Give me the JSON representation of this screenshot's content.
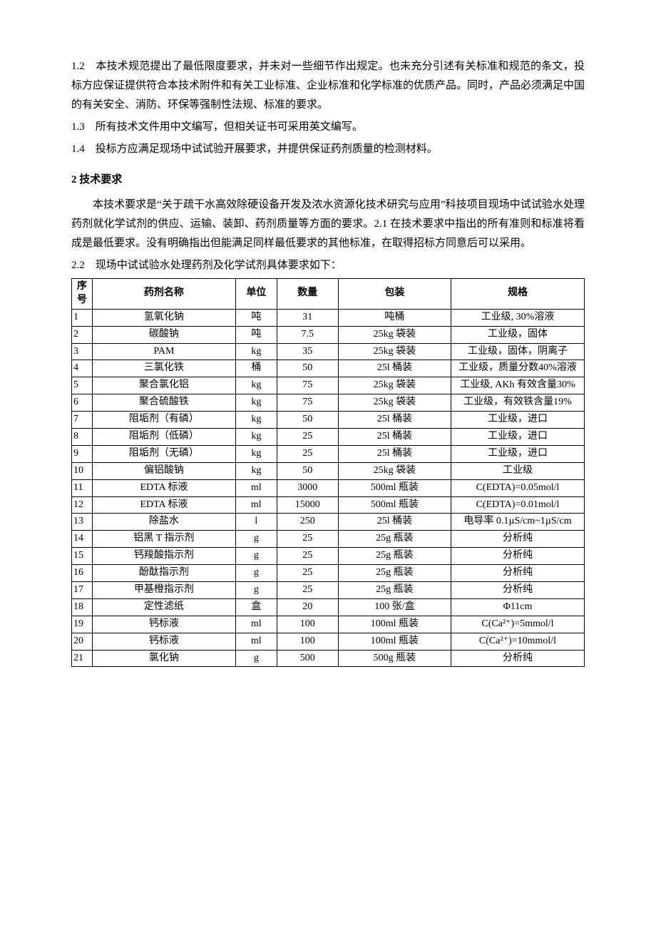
{
  "paragraphs": {
    "p12": "1.2　本技术规范提出了最低限度要求，并未对一些细节作出规定。也未充分引述有关标准和规范的条文，投标方应保证提供符合本技术附件和有关工业标准、企业标准和化学标准的优质产品。同时，产品必须满足中国的有关安全、消防、环保等强制性法规、标准的要求。",
    "p13": "1.3　所有技术文件用中文编写，但相关证书可采用英文编写。",
    "p14": "1.4　投标方应满足现场中试试验开展要求，并提供保证药剂质量的检测材料。",
    "h2": "2 技术要求",
    "p2a": "本技术要求是“关于疏干水高效除硬设备开发及浓水资源化技术研究与应用”科技项目现场中试试验水处理药剂就化学试剂的供应、运输、装卸、药剂质量等方面的要求。2.1 在技术要求中指出的所有准则和标准将看成是最低要求。没有明确指出但能满足同样最低要求的其他标准，在取得招标方同意后可以采用。",
    "p22": "2.2　现场中试试验水处理药剂及化学试剂具体要求如下："
  },
  "table": {
    "headers": [
      "序号",
      "药剂名称",
      "单位",
      "数量",
      "包装",
      "规格"
    ],
    "rows": [
      [
        "1",
        "氢氧化钠",
        "吨",
        "31",
        "吨桶",
        "工业级, 30%溶液"
      ],
      [
        "2",
        "碳酸钠",
        "吨",
        "7.5",
        "25kg 袋装",
        "工业级，固体"
      ],
      [
        "3",
        "PAM",
        "kg",
        "35",
        "25kg 袋装",
        "工业级，固体，阴离子"
      ],
      [
        "4",
        "三氯化铁",
        "桶",
        "50",
        "25l 桶装",
        "工业级，质量分数40%溶液"
      ],
      [
        "5",
        "聚合氯化铝",
        "kg",
        "75",
        "25kg 袋装",
        "工业级, AKh 有效含量30%"
      ],
      [
        "6",
        "聚合硫酸铁",
        "kg",
        "75",
        "25kg 袋装",
        "工业级，有效铁含量19%"
      ],
      [
        "7",
        "阻垢剂（有磷）",
        "kg",
        "50",
        "25l 桶装",
        "工业级，进口"
      ],
      [
        "8",
        "阻垢剂（低磷）",
        "kg",
        "25",
        "25l 桶装",
        "工业级，进口"
      ],
      [
        "9",
        "阻垢剂（无磷）",
        "kg",
        "25",
        "25l 桶装",
        "工业级，进口"
      ],
      [
        "10",
        "偏铝酸钠",
        "kg",
        "50",
        "25kg 袋装",
        "工业级"
      ],
      [
        "11",
        "EDTA 标液",
        "ml",
        "3000",
        "500ml 瓶装",
        "C(EDTA)=0.05mol/l"
      ],
      [
        "12",
        "EDTA 标液",
        "ml",
        "15000",
        "500ml 瓶装",
        "C(EDTA)=0.01mol/l"
      ],
      [
        "13",
        "除盐水",
        "l",
        "250",
        "25l 桶装",
        "电导率 0.1µS/cm~1µS/cm"
      ],
      [
        "14",
        "铝黑 T 指示剂",
        "g",
        "25",
        "25g 瓶装",
        "分析纯"
      ],
      [
        "15",
        "钙羧酸指示剂",
        "g",
        "25",
        "25g 瓶装",
        "分析纯"
      ],
      [
        "16",
        "酚酞指示剂",
        "g",
        "25",
        "25g 瓶装",
        "分析纯"
      ],
      [
        "17",
        "甲基橙指示剂",
        "g",
        "25",
        "25g 瓶装",
        "分析纯"
      ],
      [
        "18",
        "定性滤纸",
        "盒",
        "20",
        "100 张/盒",
        "Φ11cm"
      ],
      [
        "19",
        "钙标液",
        "ml",
        "100",
        "100ml 瓶装",
        "C(Ca²⁺)=5mmol/l"
      ],
      [
        "20",
        "钙标液",
        "ml",
        "100",
        "100ml 瓶装",
        "C(Ca²⁺)=10mmol/l"
      ],
      [
        "21",
        "氯化钠",
        "g",
        "500",
        "500g 瓶装",
        "分析纯"
      ]
    ]
  }
}
